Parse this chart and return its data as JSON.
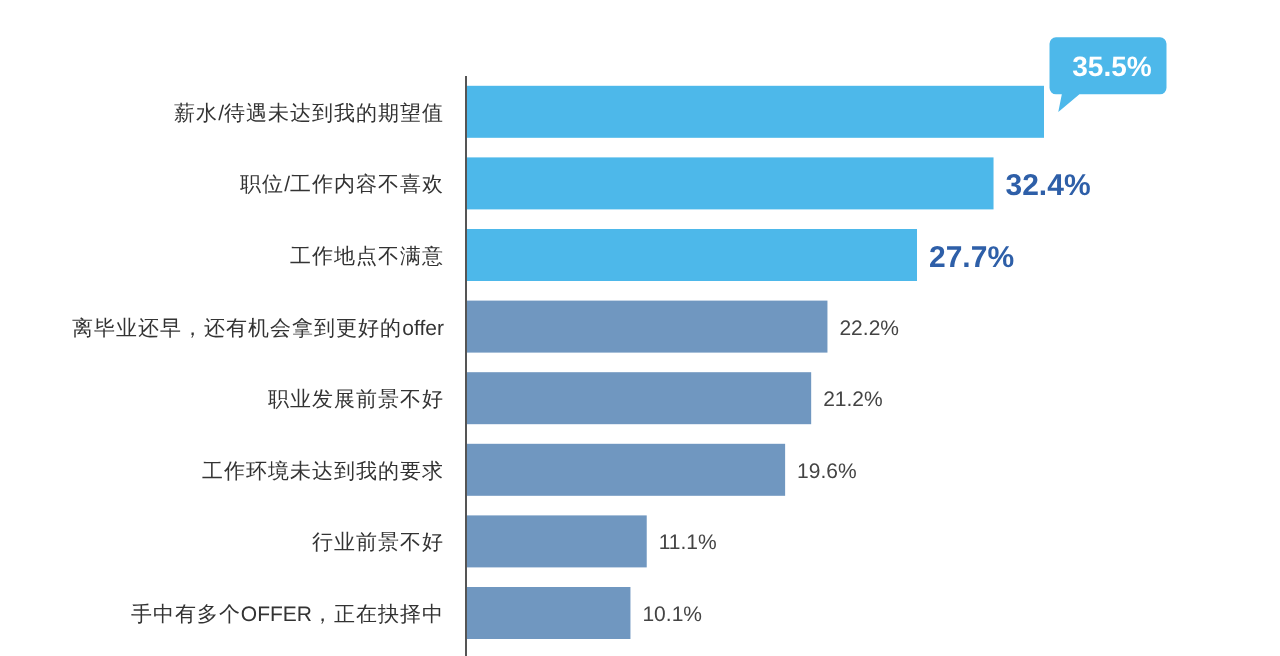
{
  "chart_data": {
    "type": "bar",
    "orientation": "horizontal",
    "categories": [
      "薪水/待遇未达到我的期望值",
      "职位/工作内容不喜欢",
      "工作地点不满意",
      "离毕业还早，还有机会拿到更好的offer",
      "职业发展前景不好",
      "工作环境未达到我的要求",
      "行业前景不好",
      "手中有多个OFFER，正在抉择中"
    ],
    "values": [
      35.5,
      32.4,
      27.7,
      22.2,
      21.2,
      19.6,
      11.1,
      10.1
    ],
    "colors": [
      "#4db8ea",
      "#4db8ea",
      "#4db8ea",
      "#7097c0",
      "#7097c0",
      "#7097c0",
      "#7097c0",
      "#7097c0"
    ],
    "value_labels": [
      "35.5%",
      "32.4%",
      "27.7%",
      "22.2%",
      "21.2%",
      "19.6%",
      "11.1%",
      "10.1%"
    ]
  }
}
